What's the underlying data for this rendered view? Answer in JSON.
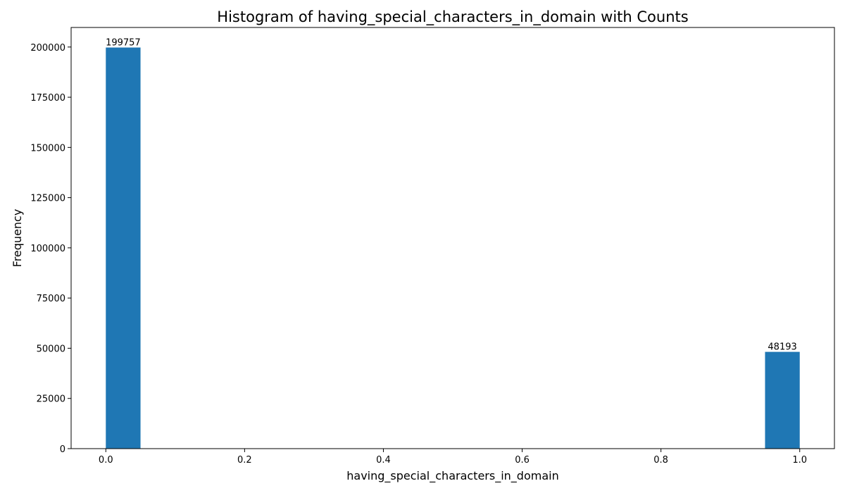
{
  "chart_data": {
    "type": "bar",
    "title": "Histogram of having_special_characters_in_domain with Counts",
    "xlabel": "having_special_characters_in_domain",
    "ylabel": "Frequency",
    "xlim": [
      -0.05,
      1.05
    ],
    "ylim": [
      0,
      209744
    ],
    "x_ticks": [
      0.0,
      0.2,
      0.4,
      0.6,
      0.8,
      1.0
    ],
    "x_tick_labels": [
      "0.0",
      "0.2",
      "0.4",
      "0.6",
      "0.8",
      "1.0"
    ],
    "y_ticks": [
      0,
      25000,
      50000,
      75000,
      100000,
      125000,
      150000,
      175000,
      200000
    ],
    "y_tick_labels": [
      "0",
      "25000",
      "50000",
      "75000",
      "100000",
      "125000",
      "150000",
      "175000",
      "200000"
    ],
    "bin_width": 0.05,
    "bars": [
      {
        "x_start": 0.0,
        "x_end": 0.05,
        "value": 199757,
        "label": "199757"
      },
      {
        "x_start": 0.95,
        "x_end": 1.0,
        "value": 48193,
        "label": "48193"
      }
    ],
    "color": "#1f77b4",
    "grid": false,
    "legend": "none"
  }
}
